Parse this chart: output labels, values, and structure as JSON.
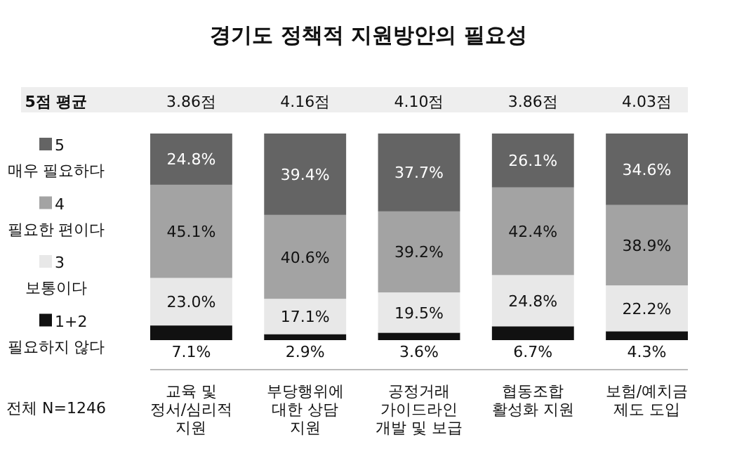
{
  "chart_data": {
    "type": "bar",
    "stacked": true,
    "title": "경기도 정책적 지원방안의 필요성",
    "categories": [
      "교육 및 정서/심리적 지원",
      "부당행위에 대한 상담 지원",
      "공정거래 가이드라인 개발 및 보급",
      "협동조합 활성화 지원",
      "보험/예치금 제도 도입"
    ],
    "series": [
      {
        "name": "1+2 필요하지 않다",
        "color": "#111111",
        "values": [
          7.1,
          2.9,
          3.6,
          6.7,
          4.3
        ],
        "value_labels": [
          "7.1%",
          "2.9%",
          "3.6%",
          "6.7%",
          "4.3%"
        ]
      },
      {
        "name": "3 보통이다",
        "color": "#e8e8e8",
        "values": [
          23.0,
          17.1,
          19.5,
          24.8,
          22.2
        ],
        "value_labels": [
          "23.0%",
          "17.1%",
          "19.5%",
          "24.8%",
          "22.2%"
        ]
      },
      {
        "name": "4 필요한 편이다",
        "color": "#a3a3a3",
        "values": [
          45.1,
          40.6,
          39.2,
          42.4,
          38.9
        ],
        "value_labels": [
          "45.1%",
          "40.6%",
          "39.2%",
          "42.4%",
          "38.9%"
        ]
      },
      {
        "name": "5 매우 필요하다",
        "color": "#646464",
        "values": [
          24.8,
          39.4,
          37.7,
          26.1,
          34.6
        ],
        "value_labels": [
          "24.8%",
          "39.4%",
          "37.7%",
          "26.1%",
          "34.6%"
        ]
      }
    ],
    "legend": "left",
    "annotations": [
      "5점 평균",
      "3.86점",
      "4.16점",
      "4.10점",
      "3.86점",
      "4.03점",
      "전체 N=1246"
    ]
  }
}
